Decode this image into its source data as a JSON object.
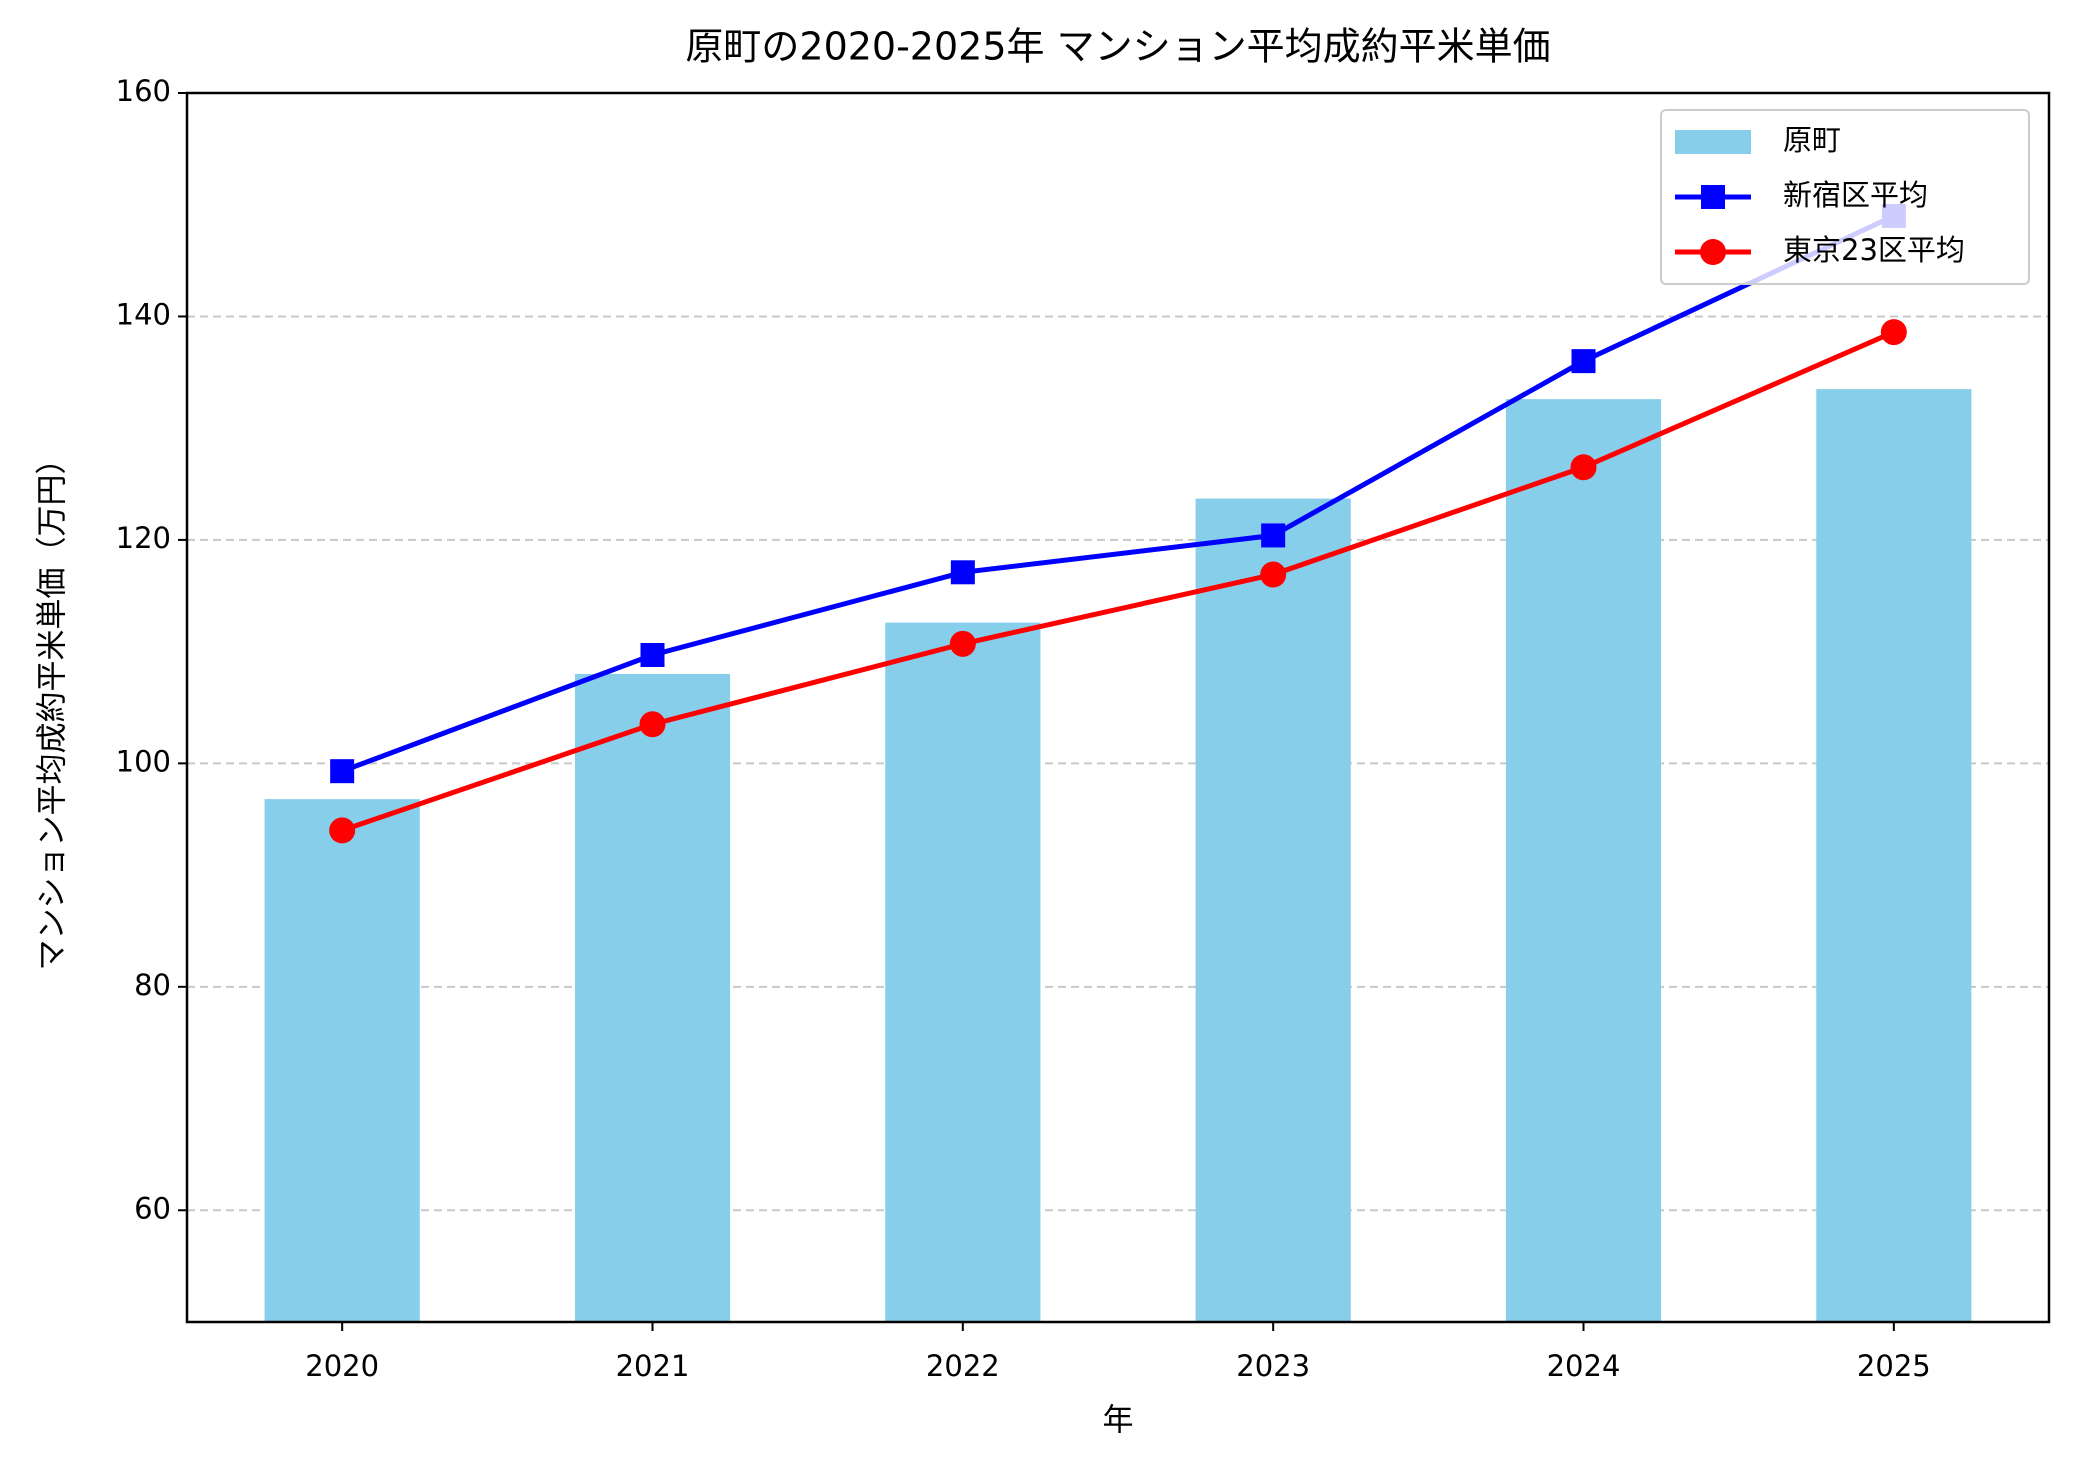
{
  "chart_data": {
    "type": "bar_line",
    "title": "原町の2020-2025年 マンション平均成約平米単価",
    "x_label": "年",
    "y_label": "マンション平均成約平米単価（万円）",
    "categories": [
      "2020",
      "2021",
      "2022",
      "2023",
      "2024",
      "2025"
    ],
    "series": [
      {
        "name": "原町",
        "type": "bar",
        "color": "#87ceeb",
        "values": [
          96.8,
          108,
          112.6,
          123.7,
          132.6,
          133.5
        ]
      },
      {
        "name": "新宿区平均",
        "type": "line",
        "marker": "square",
        "color": "#0000ff",
        "values": [
          99.3,
          109.7,
          117.1,
          120.4,
          136,
          149
        ]
      },
      {
        "name": "東京23区平均",
        "type": "line",
        "marker": "circle",
        "color": "#ff0000",
        "values": [
          94,
          103.5,
          110.7,
          116.9,
          126.5,
          138.6
        ]
      }
    ],
    "ylim": [
      50,
      160
    ],
    "yticks": [
      60,
      80,
      100,
      120,
      140,
      160
    ],
    "grid": true,
    "legend": "upper right"
  }
}
